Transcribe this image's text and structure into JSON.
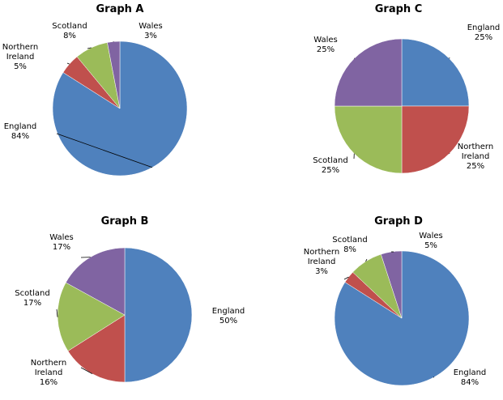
{
  "chart_data": [
    {
      "type": "pie",
      "title": "Graph A",
      "categories": [
        "England",
        "Northern Ireland",
        "Scotland",
        "Wales"
      ],
      "values": [
        84,
        5,
        8,
        3
      ],
      "labels": [
        [
          "England",
          "84%"
        ],
        [
          "Northern",
          "Ireland",
          "5%"
        ],
        [
          "Scotland",
          "8%"
        ],
        [
          "Wales",
          "3%"
        ]
      ],
      "colors": [
        "#4F81BD",
        "#C0504D",
        "#9BBB59",
        "#8064A2"
      ],
      "legend": "none"
    },
    {
      "type": "pie",
      "title": "Graph C",
      "categories": [
        "England",
        "Northern Ireland",
        "Scotland",
        "Wales"
      ],
      "values": [
        25,
        25,
        25,
        25
      ],
      "labels": [
        [
          "England",
          "25%"
        ],
        [
          "Northern",
          "Ireland",
          "25%"
        ],
        [
          "Scotland",
          "25%"
        ],
        [
          "Wales",
          "25%"
        ]
      ],
      "colors": [
        "#4F81BD",
        "#C0504D",
        "#9BBB59",
        "#8064A2"
      ],
      "legend": "none"
    },
    {
      "type": "pie",
      "title": "Graph B",
      "categories": [
        "England",
        "Northern Ireland",
        "Scotland",
        "Wales"
      ],
      "values": [
        50,
        16,
        17,
        17
      ],
      "labels": [
        [
          "England",
          "50%"
        ],
        [
          "Northern",
          "Ireland",
          "16%"
        ],
        [
          "Scotland",
          "17%"
        ],
        [
          "Wales",
          "17%"
        ]
      ],
      "colors": [
        "#4F81BD",
        "#C0504D",
        "#9BBB59",
        "#8064A2"
      ],
      "legend": "none"
    },
    {
      "type": "pie",
      "title": "Graph D",
      "categories": [
        "England",
        "Northern Ireland",
        "Scotland",
        "Wales"
      ],
      "values": [
        84,
        3,
        8,
        5
      ],
      "labels": [
        [
          "England",
          "84%"
        ],
        [
          "Northern",
          "Ireland",
          "3%"
        ],
        [
          "Scotland",
          "8%"
        ],
        [
          "Wales",
          "5%"
        ]
      ],
      "colors": [
        "#4F81BD",
        "#C0504D",
        "#9BBB59",
        "#8064A2"
      ],
      "legend": "none"
    }
  ]
}
